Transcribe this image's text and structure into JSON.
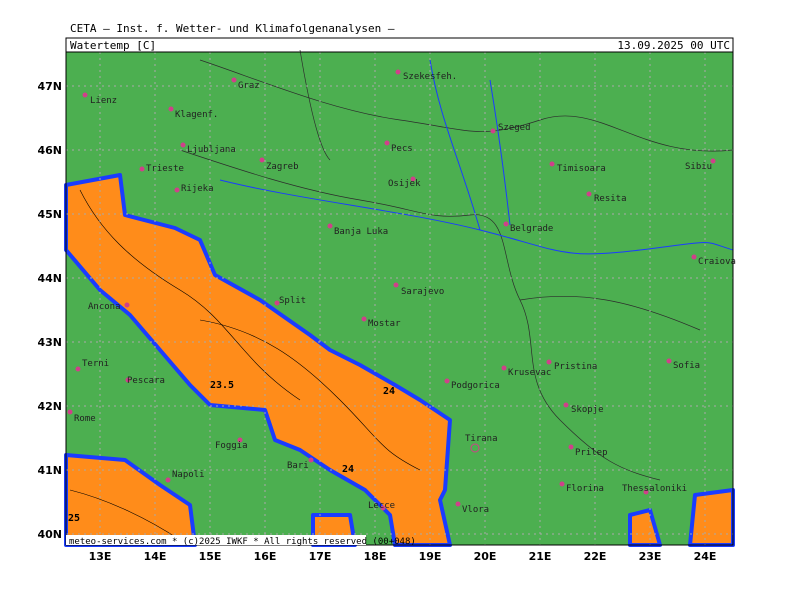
{
  "header": "CETA — Inst. f. Wetter- und Klimafolgenanalysen —",
  "panel": {
    "title": "Watertemp [C]",
    "datetime": "13.09.2025 00 UTC"
  },
  "map": {
    "lat_labels": [
      "47N",
      "46N",
      "45N",
      "44N",
      "43N",
      "42N",
      "41N",
      "40N"
    ],
    "lon_labels": [
      "13E",
      "14E",
      "15E",
      "16E",
      "17E",
      "18E",
      "19E",
      "20E",
      "21E",
      "22E",
      "23E",
      "24E"
    ],
    "cities": [
      "Lienz",
      "Graz",
      "Szekesfeh.",
      "Klagenf.",
      "Szeged",
      "Pecs",
      "Ljubljana",
      "Zagreb",
      "Timisoara",
      "Sibiu",
      "Trieste",
      "Osijek",
      "Rijeka",
      "Resita",
      "Belgrade",
      "Banja Luka",
      "Craiova",
      "Sarajevo",
      "Ancona",
      "Split",
      "Mostar",
      "Terni",
      "Pristina",
      "Sofia",
      "Pescara",
      "Krusevac",
      "Podgorica",
      "Skopje",
      "Rome",
      "Foggia",
      "Tirana",
      "Prilep",
      "Bari",
      "Napoli",
      "Florina",
      "Thessaloniki",
      "Vlora",
      "Lecce"
    ],
    "contour_labels": [
      23.5,
      24,
      24,
      25
    ]
  },
  "footer": "meteo-services.com * (c)2025 IWKF * All rights reserved (00+048)"
}
